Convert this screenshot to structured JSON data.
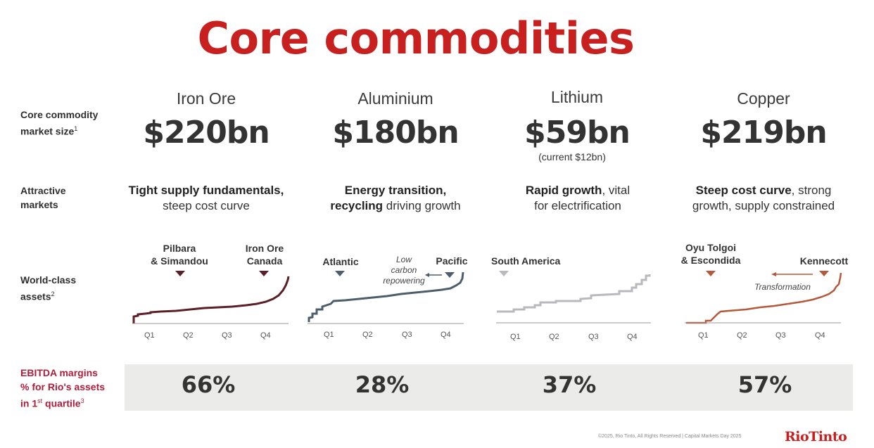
{
  "title": "Core commodities",
  "row_labels": {
    "market_size_line1": "Core commodity",
    "market_size_line2": "market size",
    "market_size_sup": "1",
    "attractive_line1": "Attractive",
    "attractive_line2": "markets",
    "assets_line1": "World-class",
    "assets_line2": "assets",
    "assets_sup": "2",
    "ebitda_line1": "EBITDA margins",
    "ebitda_line2": "% for Rio's assets",
    "ebitda_line3_pre": "in 1",
    "ebitda_line3_sup": "st",
    "ebitda_line3_post": " quartile",
    "ebitda_sup": "3"
  },
  "columns": [
    {
      "name": "Iron Ore",
      "size": "$220bn",
      "sub": "",
      "attr_bold1": "Tight supply fundamentals,",
      "attr_rest1": "",
      "attr_line2_bold": "",
      "attr_line2": "steep cost curve",
      "margin": "66%"
    },
    {
      "name": "Aluminium",
      "size": "$180bn",
      "sub": "",
      "attr_bold1": "Energy transition,",
      "attr_rest1": "",
      "attr_line2_bold": "recycling",
      "attr_line2": " driving growth",
      "margin": "28%"
    },
    {
      "name": "Lithium",
      "size": "$59bn",
      "sub": "(current $12bn)",
      "attr_bold1": "Rapid growth",
      "attr_rest1": ", vital",
      "attr_line2_bold": "",
      "attr_line2": "for electrification",
      "margin": "37%"
    },
    {
      "name": "Copper",
      "size": "$219bn",
      "sub": "",
      "attr_bold1": "Steep cost curve",
      "attr_rest1": ", strong",
      "attr_line2_bold": "",
      "attr_line2": "growth, supply constrained",
      "margin": "57%"
    }
  ],
  "asset_labels": {
    "iron_a1": "Pilbara",
    "iron_a2": "& Simandou",
    "iron_b1": "Iron Ore",
    "iron_b2": "Canada",
    "alu_a": "Atlantic",
    "alu_b": "Pacific",
    "alu_note1": "Low",
    "alu_note2": "carbon",
    "alu_note3": "repowering",
    "lith_a": "South America",
    "cu_a1": "Oyu Tolgoi",
    "cu_a2": "& Escondida",
    "cu_b": "Kennecott",
    "cu_note": "Transformation"
  },
  "quartiles": [
    "Q1",
    "Q2",
    "Q3",
    "Q4"
  ],
  "colors": {
    "accent": "#c8201e",
    "iron": "#5a1f28",
    "alu": "#4e5d6b",
    "lith": "#b9b9bd",
    "copper": "#b5583b",
    "band": "#ebebea"
  },
  "footer": {
    "copyright": "©2025, Rio Tinto, All Rights Reserved  |  Capital Markets Day 2025",
    "logo": "RioTinto"
  }
}
